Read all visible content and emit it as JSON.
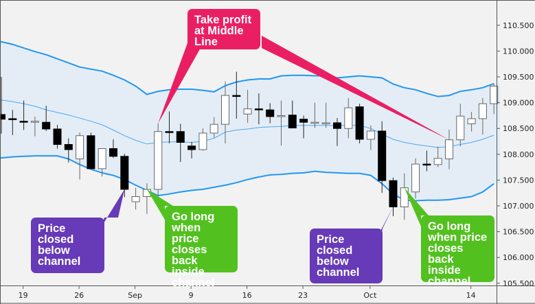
{
  "chart_data": {
    "type": "candlestick",
    "title": "",
    "xlabel": "",
    "ylabel": "",
    "ylim": [
      105.5,
      110.8
    ],
    "y_ticks": [
      "105.500",
      "106.000",
      "106.500",
      "107.000",
      "107.500",
      "108.000",
      "108.500",
      "109.000",
      "109.500",
      "110.000",
      "110.500"
    ],
    "x_tick_labels": [
      {
        "index": 2,
        "label": "19"
      },
      {
        "index": 7,
        "label": "26"
      },
      {
        "index": 12,
        "label": "Sep"
      },
      {
        "index": 17,
        "label": "9"
      },
      {
        "index": 22,
        "label": "16"
      },
      {
        "index": 27,
        "label": "23"
      },
      {
        "index": 33,
        "label": "Oct"
      },
      {
        "index": 42,
        "label": "14"
      }
    ],
    "grid": false,
    "colors": {
      "background": "#f2f2f2",
      "band_fill": "#e4edf6",
      "band_line": "#2196f3",
      "bull": "#ffffff",
      "bear": "#000000"
    },
    "candles": [
      [
        108.77,
        109.5,
        108.4,
        108.68
      ],
      [
        108.69,
        108.86,
        108.37,
        108.68
      ],
      [
        108.64,
        109.04,
        108.47,
        108.63
      ],
      [
        108.63,
        108.73,
        108.35,
        108.64
      ],
      [
        108.62,
        108.94,
        108.45,
        108.49
      ],
      [
        108.49,
        108.57,
        108.11,
        108.19
      ],
      [
        108.19,
        108.31,
        107.84,
        108.09
      ],
      [
        107.91,
        108.42,
        107.51,
        108.36
      ],
      [
        108.36,
        108.42,
        107.72,
        107.72
      ],
      [
        107.72,
        108.11,
        107.57,
        108.11
      ],
      [
        108.11,
        108.29,
        107.93,
        107.96
      ],
      [
        107.96,
        108.01,
        107.17,
        107.32
      ],
      [
        107.08,
        107.35,
        106.93,
        107.18
      ],
      [
        107.18,
        107.44,
        106.84,
        107.32
      ],
      [
        107.32,
        108.6,
        107.2,
        108.44
      ],
      [
        108.44,
        108.83,
        108.21,
        108.43
      ],
      [
        108.44,
        108.59,
        107.85,
        108.23
      ],
      [
        108.16,
        108.24,
        107.92,
        108.09
      ],
      [
        108.09,
        108.5,
        108.07,
        108.41
      ],
      [
        108.41,
        108.72,
        108.32,
        108.58
      ],
      [
        108.58,
        109.41,
        108.21,
        109.14
      ],
      [
        109.14,
        109.6,
        108.69,
        109.13
      ],
      [
        108.78,
        109.25,
        108.61,
        108.88
      ],
      [
        108.88,
        109.18,
        108.58,
        108.87
      ],
      [
        108.86,
        108.99,
        108.6,
        108.73
      ],
      [
        108.74,
        109.04,
        108.17,
        108.75
      ],
      [
        108.76,
        109.04,
        108.51,
        108.51
      ],
      [
        108.68,
        108.75,
        108.31,
        108.62
      ],
      [
        108.62,
        109.0,
        108.51,
        108.62
      ],
      [
        108.61,
        109.0,
        108.51,
        108.61
      ],
      [
        108.61,
        108.7,
        108.16,
        108.5
      ],
      [
        108.5,
        109.09,
        108.31,
        108.9
      ],
      [
        108.92,
        108.98,
        108.21,
        108.29
      ],
      [
        108.29,
        108.56,
        108.08,
        108.45
      ],
      [
        108.45,
        108.64,
        107.25,
        107.49
      ],
      [
        107.49,
        107.55,
        106.8,
        106.98
      ],
      [
        106.98,
        107.63,
        106.73,
        107.35
      ],
      [
        107.27,
        107.92,
        107.14,
        107.81
      ],
      [
        107.81,
        108.07,
        107.67,
        107.8
      ],
      [
        107.8,
        108.15,
        107.75,
        107.92
      ],
      [
        107.91,
        108.48,
        107.71,
        108.28
      ],
      [
        108.28,
        108.98,
        108.15,
        108.74
      ],
      [
        108.59,
        108.82,
        108.44,
        108.69
      ],
      [
        108.69,
        109.09,
        108.38,
        108.98
      ],
      [
        108.98,
        109.36,
        108.78,
        109.32
      ]
    ],
    "band_upper": [
      110.18,
      110.13,
      110.06,
      109.99,
      109.93,
      109.85,
      109.77,
      109.69,
      109.65,
      109.61,
      109.53,
      109.44,
      109.32,
      109.16,
      109.22,
      109.25,
      109.26,
      109.26,
      109.24,
      109.21,
      109.33,
      109.4,
      109.44,
      109.46,
      109.46,
      109.52,
      109.53,
      109.53,
      109.52,
      109.52,
      109.48,
      109.5,
      109.52,
      109.5,
      109.48,
      109.36,
      109.29,
      109.25,
      109.18,
      109.12,
      109.14,
      109.22,
      109.25,
      109.29,
      109.37
    ],
    "band_middle": [
      109.05,
      109.02,
      108.98,
      108.93,
      108.86,
      108.81,
      108.76,
      108.7,
      108.64,
      108.57,
      108.47,
      108.36,
      108.27,
      108.2,
      108.23,
      108.24,
      108.24,
      108.23,
      108.25,
      108.31,
      108.43,
      108.47,
      108.49,
      108.52,
      108.53,
      108.54,
      108.56,
      108.56,
      108.56,
      108.56,
      108.56,
      108.56,
      108.56,
      108.5,
      108.39,
      108.29,
      108.23,
      108.19,
      108.16,
      108.13,
      108.15,
      108.19,
      108.23,
      108.29,
      108.37
    ],
    "band_lower": [
      107.93,
      107.95,
      107.96,
      107.97,
      107.97,
      107.97,
      107.91,
      107.8,
      107.71,
      107.64,
      107.59,
      107.51,
      107.4,
      107.3,
      107.2,
      107.23,
      107.27,
      107.3,
      107.32,
      107.36,
      107.4,
      107.45,
      107.51,
      107.56,
      107.6,
      107.61,
      107.63,
      107.64,
      107.67,
      107.65,
      107.64,
      107.63,
      107.63,
      107.59,
      107.43,
      107.23,
      107.11,
      107.1,
      107.11,
      107.11,
      107.12,
      107.15,
      107.18,
      107.27,
      107.43
    ],
    "annotations": [
      {
        "id": "take-profit",
        "lines": [
          "Take profit",
          "at Middle",
          "Line"
        ],
        "color": "#ea1f63",
        "targets": [
          14,
          40
        ]
      },
      {
        "id": "closed-below-1",
        "lines": [
          "Price",
          "closed",
          "below",
          "channel"
        ],
        "color": "#673ab7",
        "targets": [
          11
        ]
      },
      {
        "id": "go-long-1",
        "lines": [
          "Go long",
          "when price",
          "closes",
          "back inside",
          "channel"
        ],
        "color": "#52c11f",
        "targets": [
          13
        ]
      },
      {
        "id": "closed-below-2",
        "lines": [
          "Price",
          "closed",
          "below",
          "channel"
        ],
        "color": "#673ab7",
        "targets": [
          35
        ]
      },
      {
        "id": "go-long-2",
        "lines": [
          "Go long",
          "when price",
          "closes",
          "back inside",
          "channel"
        ],
        "color": "#52c11f",
        "targets": [
          36
        ]
      }
    ]
  }
}
